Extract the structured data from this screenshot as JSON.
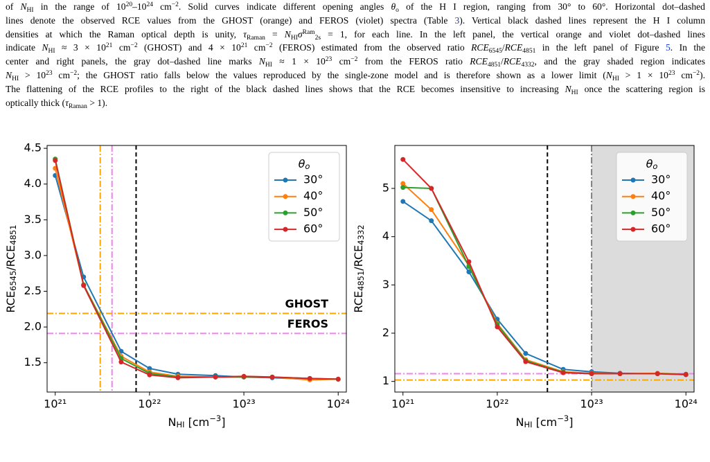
{
  "caption": {
    "lines": [
      [
        "of ",
        {
          "i": "N"
        },
        {
          "sub": "HI"
        },
        " in the range of 10",
        {
          "sup": "20"
        },
        "–10",
        {
          "sup": "24"
        },
        " cm",
        {
          "sup": "−2"
        },
        ". Solid curves indicate different opening angles ",
        {
          "i": "θ"
        },
        {
          "sub": "o"
        },
        " of the H I region, ranging from 30° to 60°. Horizontal dot–dashed"
      ],
      [
        "lines denote the observed RCE values from the GHOST (orange) and FEROS (violet) spectra (Table ",
        {
          "link": "3"
        },
        "). Vertical black dashed lines represent the H I column"
      ],
      [
        "densities at which the Raman optical depth is unity, ",
        {
          "i": "τ"
        },
        {
          "sub": "Raman"
        },
        " = ",
        {
          "i": "N"
        },
        {
          "sub": "HI"
        },
        {
          "i": "σ"
        },
        {
          "sup": "Ram"
        },
        {
          "sub": "2s"
        },
        " = 1, for each line. In the left panel, the vertical orange and violet dot–dashed lines"
      ],
      [
        "indicate ",
        {
          "i": "N"
        },
        {
          "sub": "HI"
        },
        " ≈ 3 × 10",
        {
          "sup": "21"
        },
        " cm",
        {
          "sup": "−2"
        },
        " (GHOST) and 4 × 10",
        {
          "sup": "21"
        },
        " cm",
        {
          "sup": "−2"
        },
        " (FEROS) estimated from the observed ratio ",
        {
          "i": "RCE"
        },
        {
          "sub": "6545"
        },
        "/",
        {
          "i": "RCE"
        },
        {
          "sub": "4851"
        },
        " in the left panel of Figure ",
        {
          "link": "5"
        },
        ". In the"
      ],
      [
        "center and right panels, the gray dot–dashed line marks ",
        {
          "i": "N"
        },
        {
          "sub": "HI"
        },
        " ≈ 1 × 10",
        {
          "sup": "23"
        },
        " cm",
        {
          "sup": "−2"
        },
        " from the FEROS ratio ",
        {
          "i": "RCE"
        },
        {
          "sub": "4851"
        },
        "/",
        {
          "i": "RCE"
        },
        {
          "sub": "4332"
        },
        ", and the gray shaded region indicates"
      ],
      [
        {
          "i": "N"
        },
        {
          "sub": "HI"
        },
        " > 10",
        {
          "sup": "23"
        },
        " cm",
        {
          "sup": "−2"
        },
        "; the GHOST ratio falls below the values reproduced by the single-zone model and is therefore shown as a lower limit (",
        {
          "i": "N"
        },
        {
          "sub": "HI"
        },
        " > 1 × 10",
        {
          "sup": "23"
        },
        " cm",
        {
          "sup": "−2"
        },
        ")."
      ],
      [
        "The flattening of the RCE profiles to the right of the black dashed lines shows that the RCE becomes insensitive to increasing ",
        {
          "i": "N"
        },
        {
          "sub": "HI"
        },
        " once the scattering region is"
      ],
      [
        "optically thick (",
        {
          "i": "τ"
        },
        {
          "sub": "Raman"
        },
        " > 1)."
      ]
    ]
  },
  "chart_data": [
    {
      "type": "line",
      "xscale": "log",
      "x": [
        1e+21,
        2e+21,
        5e+21,
        1e+22,
        2e+22,
        5e+22,
        1e+23,
        2e+23,
        5e+23,
        1e+24
      ],
      "xlim": [
        8.2e+20,
        1.22e+24
      ],
      "xticks": [
        {
          "value": 1e+21,
          "label": "10²¹"
        },
        {
          "value": 1e+22,
          "label": "10²²"
        },
        {
          "value": 1e+23,
          "label": "10²³"
        },
        {
          "value": 1e+24,
          "label": "10²⁴"
        }
      ],
      "ylim": [
        1.09,
        4.54
      ],
      "yticks": [
        1.5,
        {
          "value": 2,
          "label": "2.0"
        },
        2.5,
        {
          "value": 3,
          "label": "3.0"
        },
        3.5,
        {
          "value": 4,
          "label": "4.0"
        },
        4.5
      ],
      "xlabel": [
        {
          "t": "N"
        },
        {
          "sub": "HI"
        },
        {
          "t": " [cm"
        },
        {
          "sup": "−3"
        },
        {
          "t": "]"
        }
      ],
      "ylabel": [
        {
          "t": "RCE"
        },
        {
          "sub": "6545"
        },
        {
          "t": "/RCE"
        },
        {
          "sub": "4851"
        }
      ],
      "legend": {
        "title": [
          {
            "t": "θ"
          },
          {
            "sub": "o"
          }
        ],
        "loc": "upper right"
      },
      "series": [
        {
          "name": "30°",
          "color": "#1f77b4",
          "values": [
            4.12,
            2.7,
            1.66,
            1.42,
            1.34,
            1.32,
            1.3,
            1.29,
            1.27,
            1.27
          ]
        },
        {
          "name": "40°",
          "color": "#ff7f0e",
          "values": [
            4.22,
            2.59,
            1.59,
            1.37,
            1.31,
            1.3,
            1.3,
            1.3,
            1.26,
            1.27
          ]
        },
        {
          "name": "50°",
          "color": "#2ca02c",
          "values": [
            4.35,
            2.59,
            1.56,
            1.35,
            1.3,
            1.3,
            1.3,
            1.3,
            1.28,
            1.27
          ]
        },
        {
          "name": "60°",
          "color": "#d62728",
          "values": [
            4.33,
            2.58,
            1.51,
            1.33,
            1.29,
            1.3,
            1.31,
            1.3,
            1.28,
            1.27
          ]
        }
      ],
      "hlines": [
        {
          "value": 2.19,
          "color": "#ffa500",
          "style": "dashdot",
          "label": "GHOST"
        },
        {
          "value": 1.91,
          "color": "#ee82ee",
          "style": "dashdot",
          "label": "FEROS"
        }
      ],
      "vlines": [
        {
          "value": 3e+21,
          "color": "#ffa500",
          "style": "dashdot"
        },
        {
          "value": 4e+21,
          "color": "#ee82ee",
          "style": "dashdot"
        },
        {
          "value": 7.2e+21,
          "color": "#000000",
          "style": "dashed"
        }
      ]
    },
    {
      "type": "line",
      "xscale": "log",
      "x": [
        1e+21,
        2e+21,
        5e+21,
        1e+22,
        2e+22,
        5e+22,
        1e+23,
        2e+23,
        5e+23,
        1e+24
      ],
      "xlim": [
        8.2e+20,
        1.22e+24
      ],
      "xticks": [
        {
          "value": 1e+21,
          "label": "10²¹"
        },
        {
          "value": 1e+22,
          "label": "10²²"
        },
        {
          "value": 1e+23,
          "label": "10²³"
        },
        {
          "value": 1e+24,
          "label": "10²⁴"
        }
      ],
      "ylim": [
        0.78,
        5.89
      ],
      "yticks": [
        1,
        2,
        3,
        4,
        5
      ],
      "xlabel": [
        {
          "t": "N"
        },
        {
          "sub": "HI"
        },
        {
          "t": " [cm"
        },
        {
          "sup": "−3"
        },
        {
          "t": "]"
        }
      ],
      "ylabel": [
        {
          "t": "RCE"
        },
        {
          "sub": "4851"
        },
        {
          "t": "/RCE"
        },
        {
          "sub": "4332"
        }
      ],
      "legend": {
        "title": [
          {
            "t": "θ"
          },
          {
            "sub": "o"
          }
        ],
        "loc": "upper right"
      },
      "series": [
        {
          "name": "30°",
          "color": "#1f77b4",
          "values": [
            4.73,
            4.33,
            3.27,
            2.29,
            1.58,
            1.25,
            1.2,
            1.17,
            1.16,
            1.14
          ]
        },
        {
          "name": "40°",
          "color": "#ff7f0e",
          "values": [
            5.1,
            4.56,
            3.4,
            2.2,
            1.45,
            1.2,
            1.17,
            1.16,
            1.17,
            1.15
          ]
        },
        {
          "name": "50°",
          "color": "#2ca02c",
          "values": [
            5.02,
            5.0,
            3.38,
            2.18,
            1.43,
            1.19,
            1.16,
            1.16,
            1.16,
            1.15
          ]
        },
        {
          "name": "60°",
          "color": "#d62728",
          "values": [
            5.6,
            5.0,
            3.48,
            2.13,
            1.41,
            1.18,
            1.16,
            1.16,
            1.16,
            1.14
          ]
        }
      ],
      "hlines": [
        {
          "value": 1.16,
          "color": "#ee82ee",
          "style": "dashdot"
        },
        {
          "value": 1.03,
          "color": "#ffa500",
          "style": "dashdot"
        }
      ],
      "vlines": [
        {
          "value": 3.4e+22,
          "color": "#000000",
          "style": "dashed"
        },
        {
          "value": 1e+23,
          "color": "#808080",
          "style": "dashdot"
        }
      ],
      "shade": {
        "from": 1e+23,
        "color": "#dcdcdc"
      }
    }
  ]
}
